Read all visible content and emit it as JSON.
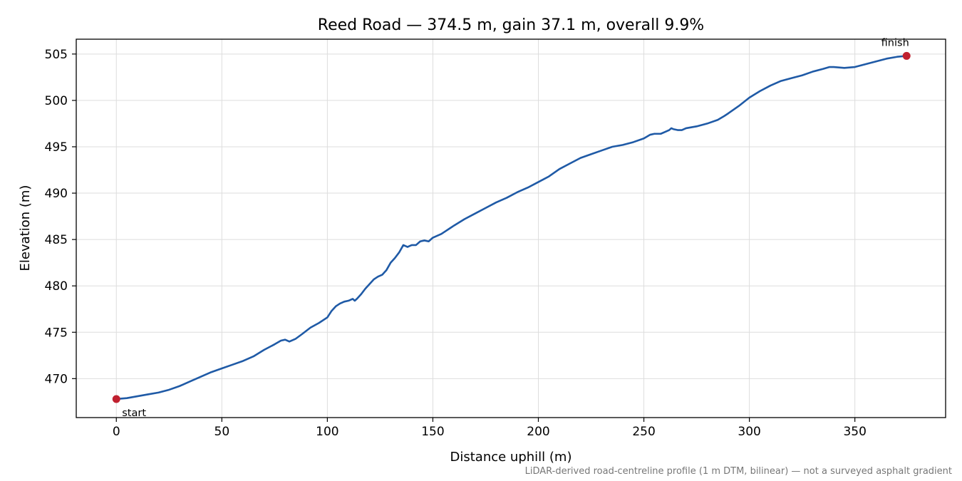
{
  "chart_data": {
    "type": "line",
    "title": "Reed Road — 374.5 m, gain 37.1 m, overall 9.9%",
    "xlabel": "Distance uphill (m)",
    "ylabel": "Elevation (m)",
    "xlim": [
      -19,
      393
    ],
    "ylim": [
      465.8,
      506.6
    ],
    "xticks": [
      0,
      50,
      100,
      150,
      200,
      250,
      300,
      350
    ],
    "yticks": [
      470,
      475,
      480,
      485,
      490,
      495,
      500,
      505
    ],
    "grid": true,
    "footnote": "LiDAR-derived road-centreline profile (1 m DTM, bilinear) — not a surveyed asphalt gradient",
    "colors": {
      "line": "#1f5aa6",
      "marker": "#c0202f",
      "grid": "#dddddd",
      "footnote": "#777777"
    },
    "series": [
      {
        "x": [
          0,
          5,
          10,
          15,
          20,
          25,
          30,
          35,
          40,
          45,
          50,
          55,
          60,
          65,
          70,
          75,
          78,
          80,
          82,
          85,
          88,
          92,
          96,
          100,
          102,
          104,
          106,
          108,
          110,
          112,
          113,
          114,
          116,
          118,
          120,
          122,
          124,
          126,
          128,
          130,
          132,
          134,
          136,
          137,
          138,
          139,
          140,
          142,
          144,
          146,
          148,
          149,
          150,
          152,
          154,
          156,
          158,
          160,
          165,
          170,
          175,
          180,
          185,
          190,
          195,
          200,
          205,
          210,
          215,
          220,
          225,
          230,
          235,
          240,
          245,
          250,
          253,
          255,
          258,
          260,
          262,
          263,
          264,
          266,
          268,
          270,
          275,
          280,
          285,
          288,
          290,
          295,
          300,
          305,
          310,
          315,
          320,
          325,
          330,
          335,
          338,
          340,
          345,
          350,
          355,
          360,
          365,
          370,
          374.5
        ],
        "y": [
          467.8,
          467.9,
          468.1,
          468.3,
          468.5,
          468.8,
          469.2,
          469.7,
          470.2,
          470.7,
          471.1,
          471.5,
          471.9,
          472.4,
          473.1,
          473.7,
          474.1,
          474.2,
          474.0,
          474.3,
          474.8,
          475.5,
          476.0,
          476.6,
          477.3,
          477.8,
          478.1,
          478.3,
          478.4,
          478.6,
          478.4,
          478.6,
          479.1,
          479.7,
          480.2,
          480.7,
          481.0,
          481.2,
          481.7,
          482.5,
          483.0,
          483.6,
          484.4,
          484.3,
          484.2,
          484.3,
          484.4,
          484.4,
          484.8,
          484.9,
          484.8,
          485.0,
          485.2,
          485.4,
          485.6,
          485.9,
          486.2,
          486.5,
          487.2,
          487.8,
          488.4,
          489.0,
          489.5,
          490.1,
          490.6,
          491.2,
          491.8,
          492.6,
          493.2,
          493.8,
          494.2,
          494.6,
          495.0,
          495.2,
          495.5,
          495.9,
          496.3,
          496.4,
          496.4,
          496.6,
          496.8,
          497.0,
          496.9,
          496.8,
          496.8,
          497.0,
          497.2,
          497.5,
          497.9,
          498.3,
          498.6,
          499.4,
          500.3,
          501.0,
          501.6,
          502.1,
          502.4,
          502.7,
          503.1,
          503.4,
          503.6,
          503.6,
          503.5,
          503.6,
          503.9,
          504.2,
          504.5,
          504.7,
          504.8
        ]
      }
    ],
    "markers": [
      {
        "label": "start",
        "x": 0,
        "y": 467.8
      },
      {
        "label": "finish",
        "x": 374.5,
        "y": 504.8
      }
    ]
  }
}
